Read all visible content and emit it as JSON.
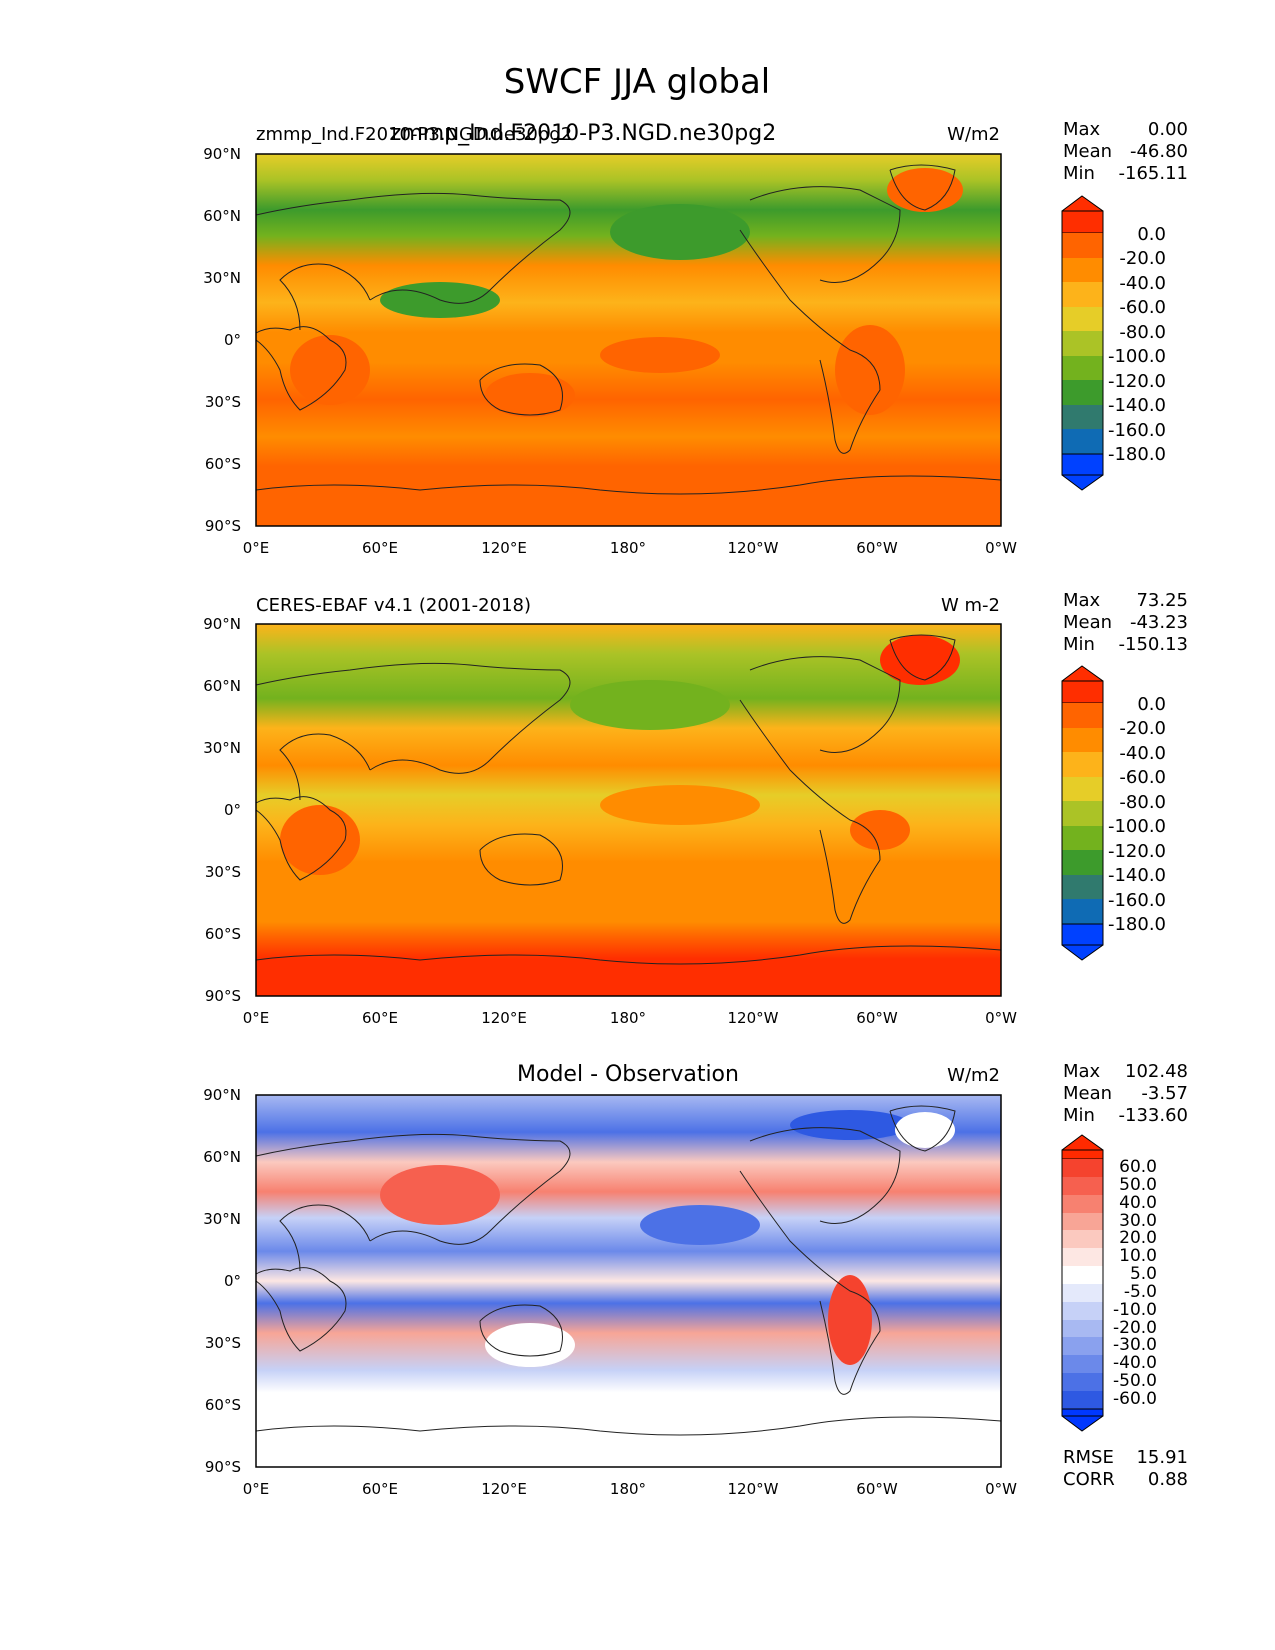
{
  "figure": {
    "title": "SWCF JJA global"
  },
  "lat_labels": [
    "90°N",
    "60°N",
    "30°N",
    "0°",
    "30°S",
    "60°S",
    "90°S"
  ],
  "lon_labels": [
    "0°E",
    "60°E",
    "120°E",
    "180°",
    "120°W",
    "60°W",
    "0°W"
  ],
  "colors": {
    "abs_scale": [
      "#0041ff",
      "#ff2e00",
      "#ff6400",
      "#ff8c00",
      "#fdb31a",
      "#e6cd28",
      "#abc326",
      "#73b21e",
      "#3d9b2c",
      "#307a6e",
      "#0f6bb4",
      "#0041ff"
    ],
    "diff_scale": [
      "#0038ff",
      "#ff2a00",
      "#f5432e",
      "#f6604f",
      "#f78170",
      "#f8a596",
      "#fbc9bf",
      "#fde7e3",
      "#ffffff",
      "#e4e9fb",
      "#c6d1f7",
      "#a8b9f2",
      "#8aa1ee",
      "#6b89ea",
      "#4c71e6",
      "#2e59e2",
      "#0038ff"
    ],
    "coast": "#222222"
  },
  "panels": [
    {
      "left_title": "zmmp_Ind.F2010-P3.NGD.ne30pg2",
      "center_title": "zmmp_Ind.F2010-P3.NGD.ne30pg2",
      "units": "W/m2",
      "stats": {
        "max_label": "Max",
        "max": "0.00",
        "mean_label": "Mean",
        "mean": "-46.80",
        "min_label": "Min",
        "min": "-165.11"
      },
      "colorbar_ticks": [
        "0.0",
        "-20.0",
        "-40.0",
        "-60.0",
        "-80.0",
        "-100.0",
        "-120.0",
        "-140.0",
        "-160.0",
        "-180.0"
      ]
    },
    {
      "left_title": "CERES-EBAF v4.1 (2001-2018)",
      "center_title": "",
      "units": "W m-2",
      "stats": {
        "max_label": "Max",
        "max": "73.25",
        "mean_label": "Mean",
        "mean": "-43.23",
        "min_label": "Min",
        "min": "-150.13"
      },
      "colorbar_ticks": [
        "0.0",
        "-20.0",
        "-40.0",
        "-60.0",
        "-80.0",
        "-100.0",
        "-120.0",
        "-140.0",
        "-160.0",
        "-180.0"
      ]
    },
    {
      "left_title": "",
      "center_title": "Model - Observation",
      "units": "W/m2",
      "stats": {
        "max_label": "Max",
        "max": "102.48",
        "mean_label": "Mean",
        "mean": "-3.57",
        "min_label": "Min",
        "min": "-133.60"
      },
      "colorbar_ticks": [
        "60.0",
        "50.0",
        "40.0",
        "30.0",
        "20.0",
        "10.0",
        "5.0",
        "-5.0",
        "-10.0",
        "-20.0",
        "-30.0",
        "-40.0",
        "-50.0",
        "-60.0"
      ],
      "extra": {
        "rmse_label": "RMSE",
        "rmse": "15.91",
        "corr_label": "CORR",
        "corr": "0.88"
      }
    }
  ],
  "chart_data": [
    {
      "type": "heatmap",
      "title": "zmmp_Ind.F2010-P3.NGD.ne30pg2",
      "units": "W/m2",
      "x": [
        "0°E",
        "60°E",
        "120°E",
        "180°",
        "120°W",
        "60°W",
        "0°W"
      ],
      "y": [
        "90°N",
        "60°N",
        "30°N",
        "0°",
        "30°S",
        "60°S",
        "90°S"
      ],
      "zonal_band_values": [
        {
          "lat": "75-90N",
          "value": -60
        },
        {
          "lat": "55-75N",
          "value": -100
        },
        {
          "lat": "40-55N",
          "value": -90
        },
        {
          "lat": "20-40N",
          "value": -45
        },
        {
          "lat": "5-20N",
          "value": -60
        },
        {
          "lat": "5S-5N",
          "value": -50
        },
        {
          "lat": "5-30S",
          "value": -30
        },
        {
          "lat": "30-45S",
          "value": -45
        },
        {
          "lat": "45-60S",
          "value": -40
        },
        {
          "lat": "60-90S",
          "value": -25
        }
      ],
      "clevels": [
        0,
        -20,
        -40,
        -60,
        -80,
        -100,
        -120,
        -140,
        -160,
        -180
      ],
      "stats": {
        "max": 0.0,
        "mean": -46.8,
        "min": -165.11
      }
    },
    {
      "type": "heatmap",
      "title": "CERES-EBAF v4.1 (2001-2018)",
      "units": "W m-2",
      "x": [
        "0°E",
        "60°E",
        "120°E",
        "180°",
        "120°W",
        "60°W",
        "0°W"
      ],
      "y": [
        "90°N",
        "60°N",
        "30°N",
        "0°",
        "30°S",
        "60°S",
        "90°S"
      ],
      "zonal_band_values": [
        {
          "lat": "75-90N",
          "value": -45
        },
        {
          "lat": "55-75N",
          "value": -90
        },
        {
          "lat": "40-55N",
          "value": -95
        },
        {
          "lat": "20-40N",
          "value": -40
        },
        {
          "lat": "5-20N",
          "value": -55
        },
        {
          "lat": "5S-5N",
          "value": -50
        },
        {
          "lat": "5-30S",
          "value": -35
        },
        {
          "lat": "30-55S",
          "value": -40
        },
        {
          "lat": "55-70S",
          "value": -15
        },
        {
          "lat": "70-90S",
          "value": 0
        }
      ],
      "clevels": [
        0,
        -20,
        -40,
        -60,
        -80,
        -100,
        -120,
        -140,
        -160,
        -180
      ],
      "stats": {
        "max": 73.25,
        "mean": -43.23,
        "min": -150.13
      }
    },
    {
      "type": "heatmap",
      "title": "Model - Observation",
      "units": "W/m2",
      "x": [
        "0°E",
        "60°E",
        "120°E",
        "180°",
        "120°W",
        "60°W",
        "0°W"
      ],
      "y": [
        "90°N",
        "60°N",
        "30°N",
        "0°",
        "30°S",
        "60°S",
        "90°S"
      ],
      "zonal_band_values": [
        {
          "lat": "75-90N",
          "value": -15
        },
        {
          "lat": "60-75N",
          "value": -25
        },
        {
          "lat": "40-60N",
          "value": 10
        },
        {
          "lat": "20-40N",
          "value": -10
        },
        {
          "lat": "5-20N",
          "value": -15
        },
        {
          "lat": "5S-5N",
          "value": 5
        },
        {
          "lat": "5-30S",
          "value": 10
        },
        {
          "lat": "30-45S",
          "value": -10
        },
        {
          "lat": "45-90S",
          "value": 0
        }
      ],
      "clevels": [
        60,
        50,
        40,
        30,
        20,
        10,
        5,
        -5,
        -10,
        -20,
        -30,
        -40,
        -50,
        -60
      ],
      "stats": {
        "max": 102.48,
        "mean": -3.57,
        "min": -133.6,
        "rmse": 15.91,
        "corr": 0.88
      }
    }
  ]
}
